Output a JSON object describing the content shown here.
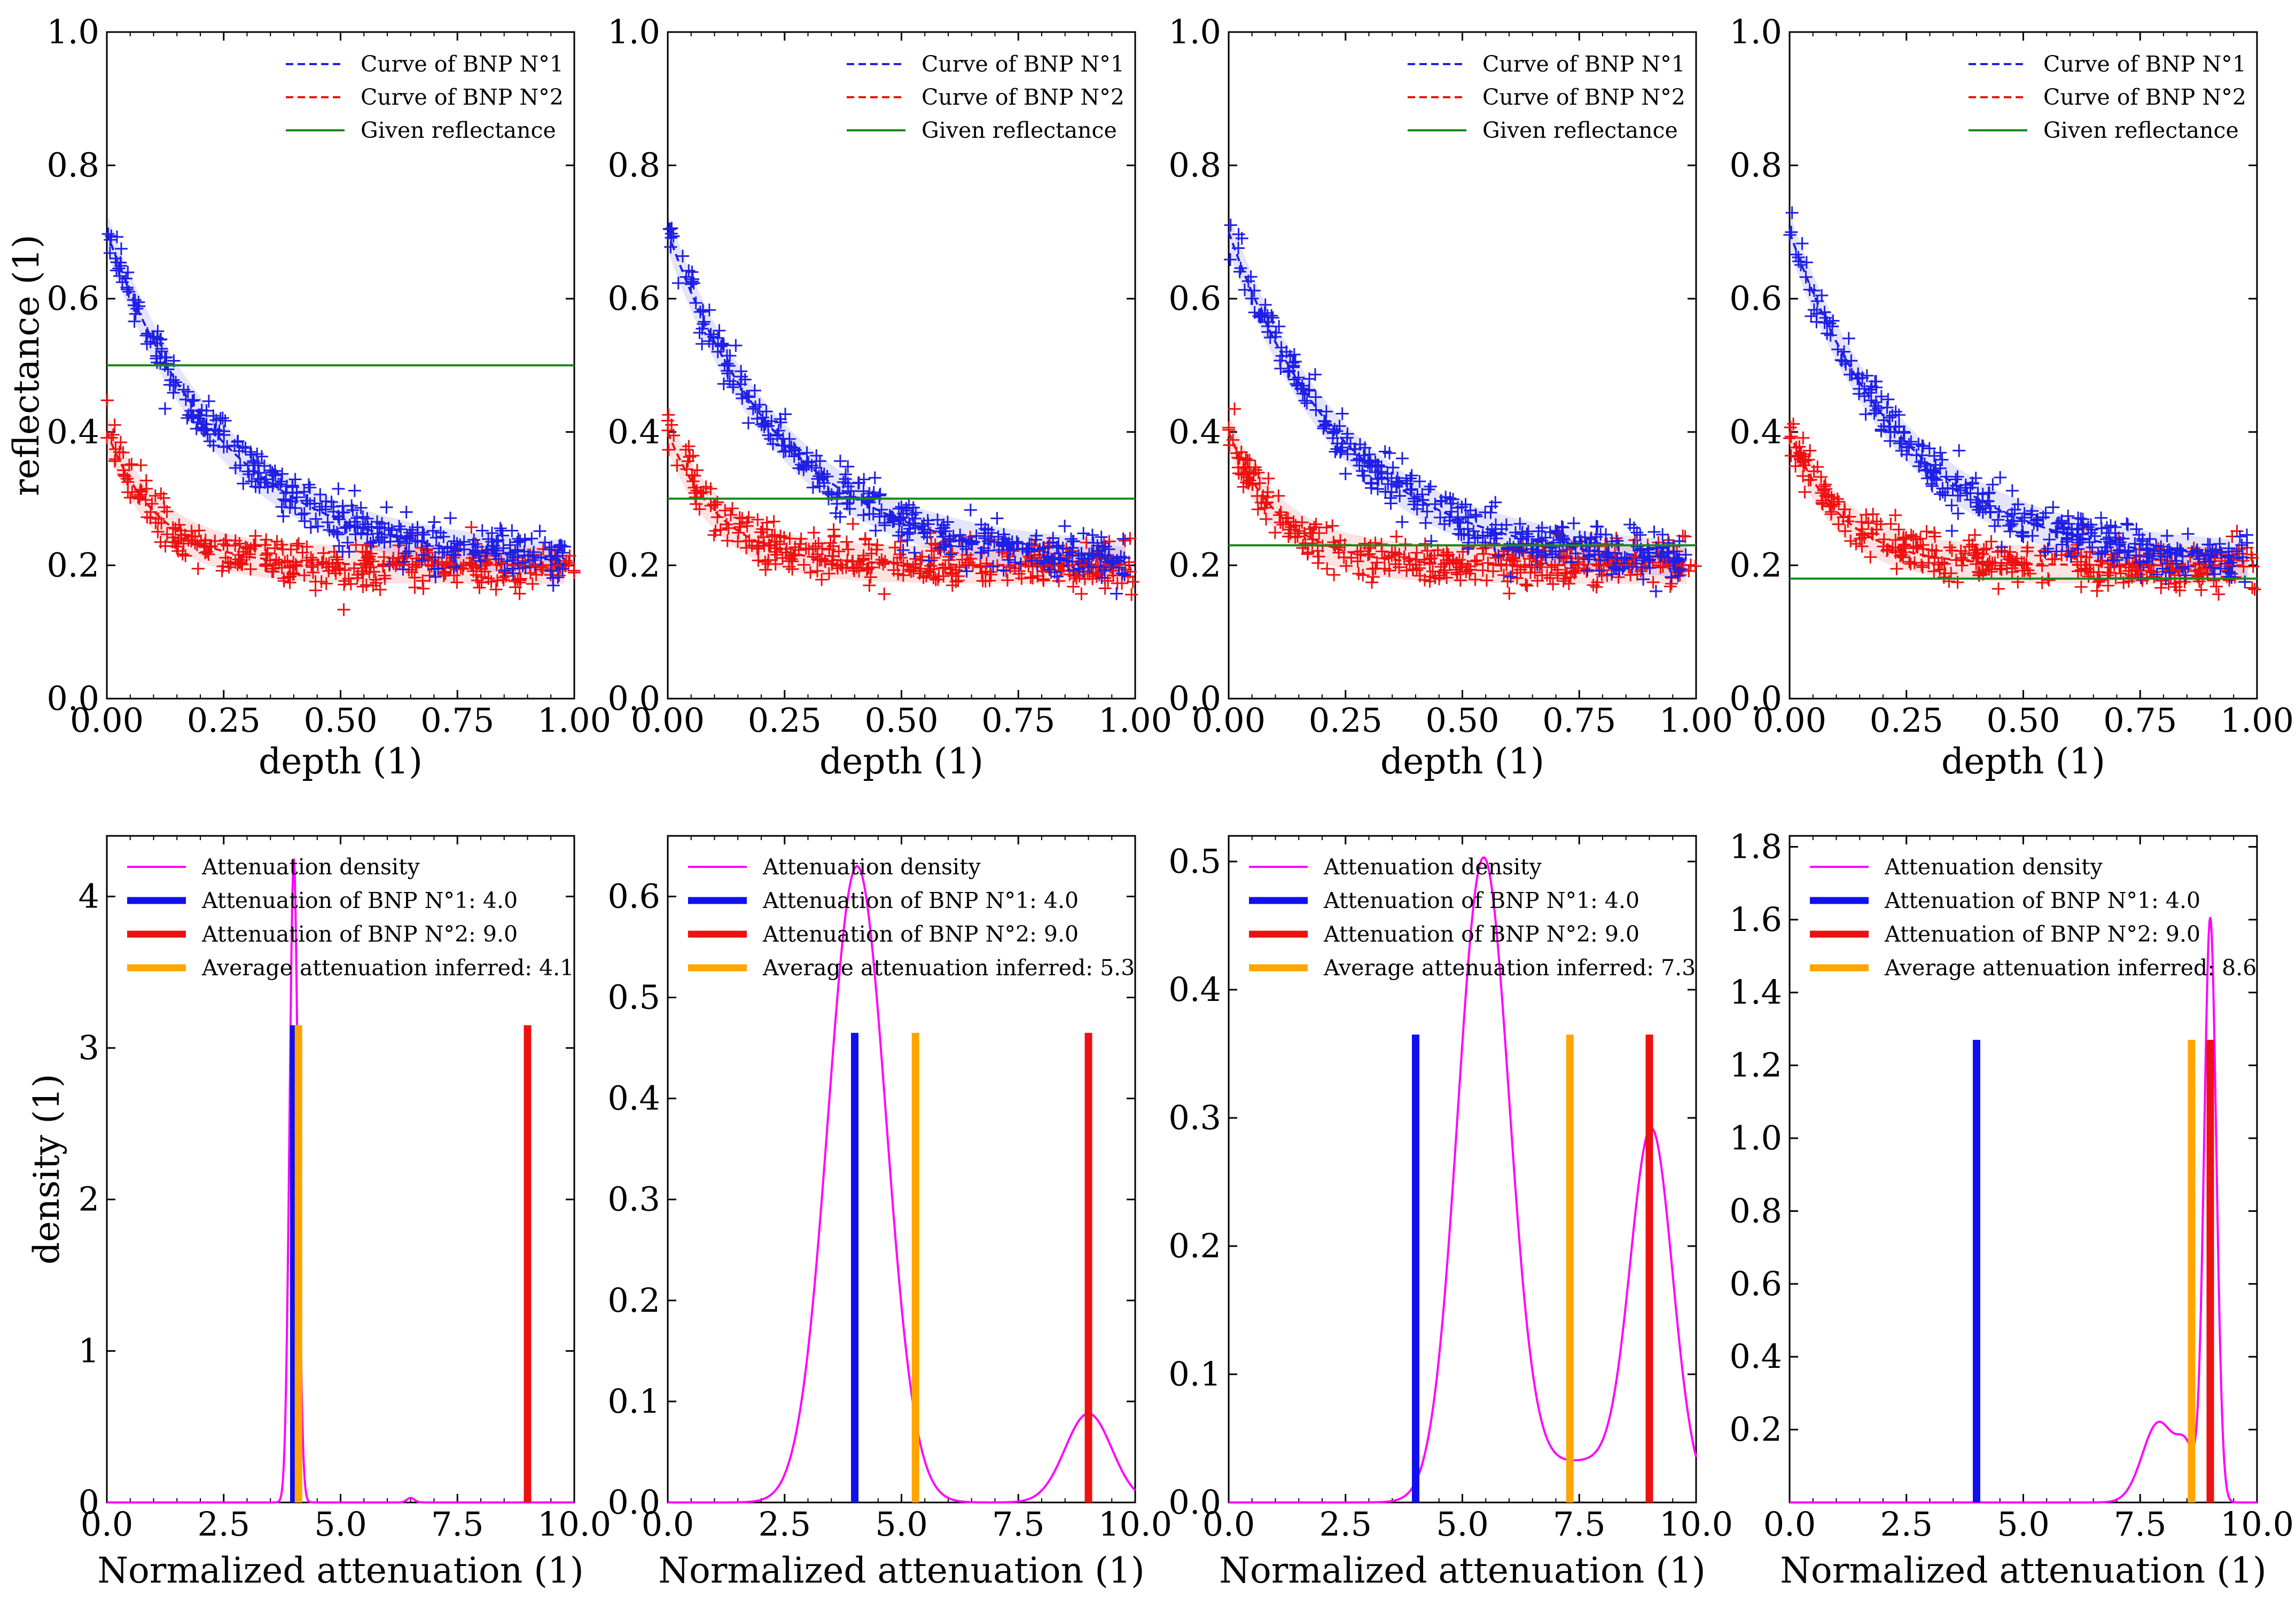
{
  "figure": {
    "top_row": {
      "xlabel": "depth (1)",
      "ylabel": "reflectance (1)"
    },
    "bottom_row": {
      "xlabel": "Normalized attenuation (1)",
      "ylabel": "density (1)"
    }
  },
  "colors": {
    "bnp1": "#1f1fe6",
    "bnp2": "#ee1111",
    "given": "#1a8a1a",
    "density": "#ff00ff",
    "attn1": "#1010ee",
    "attn2": "#ee1111",
    "avg": "#ffa500"
  },
  "chart_data": [
    {
      "type": "scatter",
      "xlabel": "depth (1)",
      "ylabel": "reflectance (1)",
      "xlim": [
        0,
        1
      ],
      "ylim": [
        0,
        1
      ],
      "xticks": [
        "0.00",
        "0.25",
        "0.50",
        "0.75",
        "1.00"
      ],
      "yticks": [
        "0.0",
        "0.2",
        "0.4",
        "0.6",
        "0.8",
        "1.0"
      ],
      "legend": [
        "Curve of BNP N°1",
        "Curve of BNP N°2",
        "Given reflectance"
      ],
      "legend_position": "top-right",
      "series": [
        {
          "name": "Curve of BNP N°1",
          "model": "0.2 + 0.5*exp(-4*x)",
          "x_range": [
            0,
            0.98
          ],
          "noise": 0.018
        },
        {
          "name": "Curve of BNP N°2",
          "model": "0.2 + 0.2*exp(-9*x)",
          "x_range": [
            0,
            1.0
          ],
          "noise": 0.018
        }
      ],
      "given_reflectance": 0.5
    },
    {
      "type": "scatter",
      "xlabel": "depth (1)",
      "ylabel": "",
      "xlim": [
        0,
        1
      ],
      "ylim": [
        0,
        1
      ],
      "xticks": [
        "0.00",
        "0.25",
        "0.50",
        "0.75",
        "1.00"
      ],
      "yticks": [
        "0.0",
        "0.2",
        "0.4",
        "0.6",
        "0.8",
        "1.0"
      ],
      "legend": [
        "Curve of BNP N°1",
        "Curve of BNP N°2",
        "Given reflectance"
      ],
      "legend_position": "top-right",
      "series": [
        {
          "name": "Curve of BNP N°1",
          "model": "0.2 + 0.5*exp(-4*x)",
          "x_range": [
            0,
            0.98
          ],
          "noise": 0.018
        },
        {
          "name": "Curve of BNP N°2",
          "model": "0.2 + 0.2*exp(-9*x)",
          "x_range": [
            0,
            1.0
          ],
          "noise": 0.018
        }
      ],
      "given_reflectance": 0.3
    },
    {
      "type": "scatter",
      "xlabel": "depth (1)",
      "ylabel": "",
      "xlim": [
        0,
        1
      ],
      "ylim": [
        0,
        1
      ],
      "xticks": [
        "0.00",
        "0.25",
        "0.50",
        "0.75",
        "1.00"
      ],
      "yticks": [
        "0.0",
        "0.2",
        "0.4",
        "0.6",
        "0.8",
        "1.0"
      ],
      "legend": [
        "Curve of BNP N°1",
        "Curve of BNP N°2",
        "Given reflectance"
      ],
      "legend_position": "top-right",
      "series": [
        {
          "name": "Curve of BNP N°1",
          "model": "0.2 + 0.5*exp(-4*x)",
          "x_range": [
            0,
            0.98
          ],
          "noise": 0.018
        },
        {
          "name": "Curve of BNP N°2",
          "model": "0.2 + 0.2*exp(-9*x)",
          "x_range": [
            0,
            1.0
          ],
          "noise": 0.018
        }
      ],
      "given_reflectance": 0.23
    },
    {
      "type": "scatter",
      "xlabel": "depth (1)",
      "ylabel": "",
      "xlim": [
        0,
        1
      ],
      "ylim": [
        0,
        1
      ],
      "xticks": [
        "0.00",
        "0.25",
        "0.50",
        "0.75",
        "1.00"
      ],
      "yticks": [
        "0.0",
        "0.2",
        "0.4",
        "0.6",
        "0.8",
        "1.0"
      ],
      "legend": [
        "Curve of BNP N°1",
        "Curve of BNP N°2",
        "Given reflectance"
      ],
      "legend_position": "top-right",
      "series": [
        {
          "name": "Curve of BNP N°1",
          "model": "0.2 + 0.5*exp(-4*x)",
          "x_range": [
            0,
            0.98
          ],
          "noise": 0.018
        },
        {
          "name": "Curve of BNP N°2",
          "model": "0.2 + 0.2*exp(-9*x)",
          "x_range": [
            0,
            1.0
          ],
          "noise": 0.018
        }
      ],
      "given_reflectance": 0.18
    },
    {
      "type": "line",
      "xlabel": "Normalized attenuation (1)",
      "ylabel": "density (1)",
      "xlim": [
        0,
        10
      ],
      "ylim": [
        0,
        4.4
      ],
      "xticks": [
        "0.0",
        "2.5",
        "5.0",
        "7.5",
        "10.0"
      ],
      "yticks": [
        "0",
        "1",
        "2",
        "3",
        "4"
      ],
      "ytick_values": [
        0,
        1,
        2,
        3,
        4
      ],
      "legend": [
        "Attenuation density",
        "Attenuation of BNP N°1: 4.0",
        "Attenuation of BNP N°2: 9.0",
        "Average attenuation inferred: 4.1"
      ],
      "legend_position": "top-right",
      "density_components": [
        {
          "mean": 4.0,
          "sd": 0.09,
          "amp": 4.25
        },
        {
          "mean": 6.5,
          "sd": 0.08,
          "amp": 0.03
        }
      ],
      "vlines": [
        {
          "name": "Attenuation of BNP N°1",
          "x": 4.0,
          "top": 3.15
        },
        {
          "name": "Attenuation of BNP N°2",
          "x": 9.0,
          "top": 3.15
        },
        {
          "name": "Average attenuation inferred",
          "x": 4.1,
          "top": 3.15
        }
      ]
    },
    {
      "type": "line",
      "xlabel": "Normalized attenuation (1)",
      "ylabel": "",
      "xlim": [
        0,
        10
      ],
      "ylim": [
        0,
        0.66
      ],
      "xticks": [
        "0.0",
        "2.5",
        "5.0",
        "7.5",
        "10.0"
      ],
      "yticks": [
        "0.0",
        "0.1",
        "0.2",
        "0.3",
        "0.4",
        "0.5",
        "0.6"
      ],
      "ytick_values": [
        0,
        0.1,
        0.2,
        0.3,
        0.4,
        0.5,
        0.6
      ],
      "legend": [
        "Attenuation density",
        "Attenuation of BNP N°1: 4.0",
        "Attenuation of BNP N°2: 9.0",
        "Average attenuation inferred: 5.3"
      ],
      "legend_position": "top-right",
      "density_components": [
        {
          "mean": 4.05,
          "sd": 0.62,
          "amp": 0.63
        },
        {
          "mean": 9.0,
          "sd": 0.5,
          "amp": 0.088
        }
      ],
      "vlines": [
        {
          "name": "Attenuation of BNP N°1",
          "x": 4.0,
          "top": 0.465
        },
        {
          "name": "Attenuation of BNP N°2",
          "x": 9.0,
          "top": 0.465
        },
        {
          "name": "Average attenuation inferred",
          "x": 5.3,
          "top": 0.465
        }
      ]
    },
    {
      "type": "line",
      "xlabel": "Normalized attenuation (1)",
      "ylabel": "",
      "xlim": [
        0,
        10
      ],
      "ylim": [
        0,
        0.52
      ],
      "xticks": [
        "0.0",
        "2.5",
        "5.0",
        "7.5",
        "10.0"
      ],
      "yticks": [
        "0.0",
        "0.1",
        "0.2",
        "0.3",
        "0.4",
        "0.5"
      ],
      "ytick_values": [
        0,
        0.1,
        0.2,
        0.3,
        0.4,
        0.5
      ],
      "legend": [
        "Attenuation density",
        "Attenuation of BNP N°1: 4.0",
        "Attenuation of BNP N°2: 9.0",
        "Average attenuation inferred: 7.3"
      ],
      "legend_position": "top-right",
      "density_components": [
        {
          "mean": 5.45,
          "sd": 0.55,
          "amp": 0.495
        },
        {
          "mean": 9.05,
          "sd": 0.45,
          "amp": 0.275
        },
        {
          "mean": 7.6,
          "sd": 1.3,
          "amp": 0.032
        }
      ],
      "vlines": [
        {
          "name": "Attenuation of BNP N°1",
          "x": 4.0,
          "top": 0.365
        },
        {
          "name": "Attenuation of BNP N°2",
          "x": 9.0,
          "top": 0.365
        },
        {
          "name": "Average attenuation inferred",
          "x": 7.3,
          "top": 0.365
        }
      ]
    },
    {
      "type": "line",
      "xlabel": "Normalized attenuation (1)",
      "ylabel": "",
      "xlim": [
        0,
        10
      ],
      "ylim": [
        0,
        1.83
      ],
      "xticks": [
        "0.0",
        "2.5",
        "5.0",
        "7.5",
        "10.0"
      ],
      "yticks": [
        "0.2",
        "0.4",
        "0.6",
        "0.8",
        "1.0",
        "1.2",
        "1.4",
        "1.6",
        "1.8"
      ],
      "ytick_values": [
        0.2,
        0.4,
        0.6,
        0.8,
        1.0,
        1.2,
        1.4,
        1.6,
        1.8
      ],
      "legend": [
        "Attenuation density",
        "Attenuation of BNP N°1: 4.0",
        "Attenuation of BNP N°2: 9.0",
        "Average attenuation inferred: 8.6"
      ],
      "legend_position": "top-right",
      "density_components": [
        {
          "mean": 9.0,
          "sd": 0.13,
          "amp": 1.6
        },
        {
          "mean": 7.9,
          "sd": 0.35,
          "amp": 0.22
        },
        {
          "mean": 8.5,
          "sd": 0.2,
          "amp": 0.12
        }
      ],
      "vlines": [
        {
          "name": "Attenuation of BNP N°1",
          "x": 4.0,
          "top": 1.27
        },
        {
          "name": "Attenuation of BNP N°2",
          "x": 9.0,
          "top": 1.27
        },
        {
          "name": "Average attenuation inferred",
          "x": 8.6,
          "top": 1.27
        }
      ]
    }
  ]
}
